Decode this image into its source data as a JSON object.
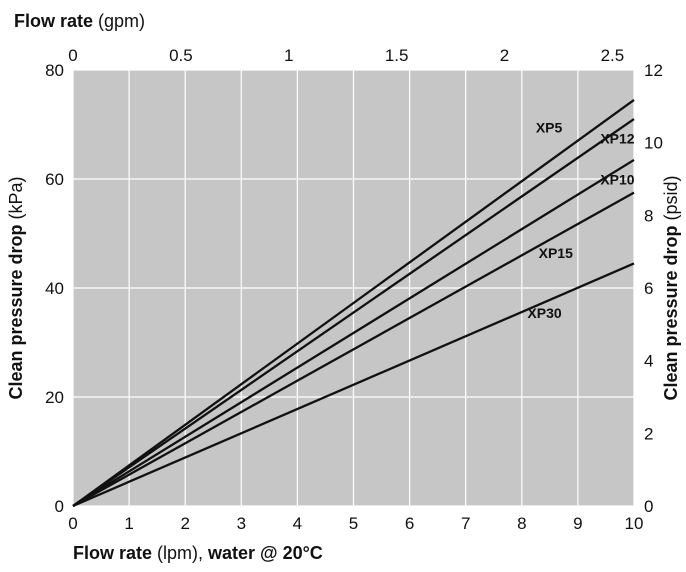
{
  "chart_data": {
    "type": "line",
    "plot_background": "#c6c6c6",
    "grid_color": "#ffffff",
    "line_color": "#111111",
    "grid": true,
    "x_bottom": {
      "label_bold": "Flow rate",
      "label_unit": " (lpm), ",
      "label_suffix": "water @ 20°C",
      "range": [
        0,
        10
      ],
      "ticks": [
        "0",
        "1",
        "2",
        "3",
        "4",
        "5",
        "6",
        "7",
        "8",
        "9",
        "10"
      ]
    },
    "x_top": {
      "label_bold": "Flow rate",
      "label_unit": " (gpm)",
      "range": [
        0,
        2.6
      ],
      "ticks": [
        "0",
        "0.5",
        "1",
        "1.5",
        "2",
        "2.5"
      ]
    },
    "y_left": {
      "label_bold": "Clean pressure drop",
      "label_unit": " (kPa)",
      "range": [
        0,
        80
      ],
      "ticks": [
        "0",
        "20",
        "40",
        "60",
        "80"
      ]
    },
    "y_right": {
      "label_bold": "Clean pressure drop",
      "label_unit": " (psid)",
      "range": [
        0,
        12
      ],
      "ticks": [
        "0",
        "2",
        "4",
        "6",
        "8",
        "10",
        "12"
      ]
    },
    "series": [
      {
        "name": "XP5",
        "x": [
          0,
          10
        ],
        "y": [
          0,
          74.5
        ]
      },
      {
        "name": "XP12",
        "x": [
          0,
          10
        ],
        "y": [
          0,
          71.0
        ]
      },
      {
        "name": "XP10",
        "x": [
          0,
          10
        ],
        "y": [
          0,
          63.5
        ]
      },
      {
        "name": "XP15",
        "x": [
          0,
          10
        ],
        "y": [
          0,
          57.5
        ]
      },
      {
        "name": "XP30",
        "x": [
          0,
          10
        ],
        "y": [
          0,
          44.5
        ]
      }
    ]
  }
}
